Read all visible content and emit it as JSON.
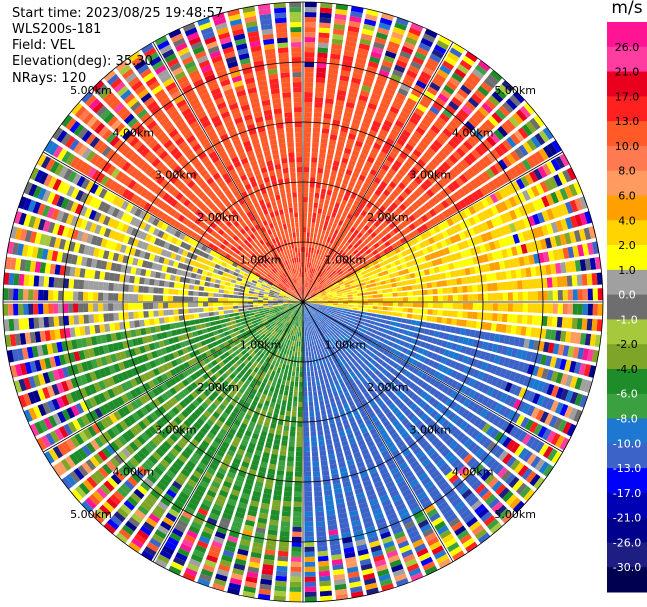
{
  "header": {
    "start_time": "Start time: 2023/08/25 19:48:57",
    "instrument": "WLS200s-181",
    "field": "Field: VEL",
    "elevation": "Elevation(deg): 35.30",
    "nrays": "NRays: 120"
  },
  "colorbar": {
    "unit": "m/s",
    "ticks": [
      "26.0",
      "21.0",
      "17.0",
      "13.0",
      "10.0",
      "8.0",
      "6.0",
      "4.0",
      "2.0",
      "1.0",
      "0.0",
      "-1.0",
      "-2.0",
      "-4.0",
      "-6.0",
      "-8.0",
      "-10.0",
      "-13.0",
      "-17.0",
      "-21.0",
      "-26.0",
      "-30.0"
    ],
    "colors": [
      "#ff1493",
      "#ff3ca0",
      "#e8001e",
      "#ff2020",
      "#ff5a28",
      "#ff7a50",
      "#ff9a60",
      "#ffa000",
      "#ffd400",
      "#ffff00",
      "#a0a0a0",
      "#6e6e6e",
      "#a5c83c",
      "#7ea528",
      "#1e8c28",
      "#3aa040",
      "#1e78d2",
      "#3c64c8",
      "#0000ff",
      "#0000b4",
      "#00008c",
      "#1e1e82",
      "#000050"
    ]
  },
  "chart_data": {
    "type": "polar-ppi",
    "field": "VEL",
    "unit": "m/s",
    "nrays": 120,
    "max_range_km": 5.0,
    "range_rings_km": [
      1,
      2,
      3,
      4,
      5
    ],
    "ring_labels": [
      "1.00km",
      "2.00km",
      "3.00km",
      "4.00km",
      "5.00km"
    ],
    "velocity_sectors": [
      {
        "azimuth_deg": [
          300,
          60
        ],
        "range_km": [
          1.5,
          4.0
        ],
        "velocity_ms": 12
      },
      {
        "azimuth_deg": [
          60,
          100
        ],
        "range_km": [
          1.0,
          2.5
        ],
        "velocity_ms": 3
      },
      {
        "azimuth_deg": [
          100,
          180
        ],
        "range_km": [
          0.5,
          4.0
        ],
        "velocity_ms": -11
      },
      {
        "azimuth_deg": [
          180,
          260
        ],
        "range_km": [
          0.5,
          4.0
        ],
        "velocity_ms": -5
      },
      {
        "azimuth_deg": [
          260,
          300
        ],
        "range_km": [
          0.5,
          2.0
        ],
        "velocity_ms": 1
      }
    ]
  }
}
